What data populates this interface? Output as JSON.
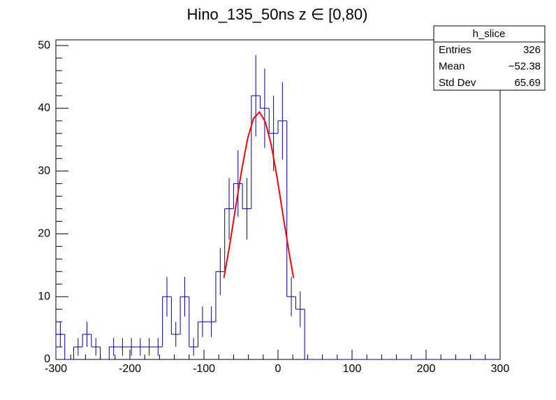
{
  "chart_data": {
    "type": "histogram",
    "title": "Hino_135_50ns z  ∈ [0,80)",
    "bins": [
      -300,
      -288,
      -276,
      -264,
      -252,
      -240,
      -228,
      -216,
      -204,
      -192,
      -180,
      -168,
      -156,
      -144,
      -132,
      -120,
      -108,
      -96,
      -84,
      -72,
      -60,
      -48,
      -36,
      -24,
      -12,
      0,
      12,
      24,
      36,
      48,
      60,
      72,
      84,
      96,
      108,
      120,
      132,
      144,
      156,
      168,
      180,
      192,
      204,
      216,
      228,
      240,
      252,
      264,
      276,
      288,
      300
    ],
    "values": [
      4,
      0,
      2,
      4,
      2,
      0,
      2,
      2,
      2,
      2,
      2,
      2,
      10,
      4,
      10,
      2,
      6,
      6,
      14,
      24,
      28,
      24,
      42,
      40,
      36,
      38,
      10,
      8,
      0,
      0,
      0,
      0,
      0,
      0,
      0,
      0,
      0,
      0,
      0,
      0,
      0,
      0,
      0,
      0,
      0,
      0,
      0,
      0,
      0,
      0
    ],
    "errors": [
      2,
      0,
      1.41,
      2,
      1.41,
      0,
      1.41,
      1.41,
      1.41,
      1.41,
      1.41,
      1.41,
      3.16,
      2,
      3.16,
      1.41,
      2.45,
      2.45,
      3.74,
      4.9,
      5.29,
      4.9,
      6.48,
      6.32,
      6,
      6.16,
      3.16,
      2.83,
      0,
      0,
      0,
      0,
      0,
      0,
      0,
      0,
      0,
      0,
      0,
      0,
      0,
      0,
      0,
      0,
      0,
      0,
      0,
      0,
      0,
      0
    ],
    "color": "#000099",
    "fit": {
      "color": "#ff0000",
      "x": [
        -73,
        -65,
        -57,
        -49,
        -41,
        -33,
        -25,
        -17,
        -9,
        -1,
        7,
        15,
        21
      ],
      "y": [
        13.0,
        18.4,
        24.4,
        30.2,
        35.2,
        38.4,
        39.4,
        37.8,
        34.1,
        28.8,
        22.8,
        17.0,
        13.0
      ]
    },
    "xlim": [
      -300,
      300
    ],
    "xticks": [
      -300,
      -200,
      -100,
      0,
      100,
      200,
      300
    ],
    "ylim": [
      0,
      50.9
    ],
    "yticks": [
      0,
      10,
      20,
      30,
      40,
      50
    ],
    "stats": {
      "title": "h_slice",
      "rows": [
        [
          "Entries",
          "326"
        ],
        [
          "Mean",
          "−52.38"
        ],
        [
          "Std Dev",
          "65.69"
        ]
      ]
    }
  }
}
